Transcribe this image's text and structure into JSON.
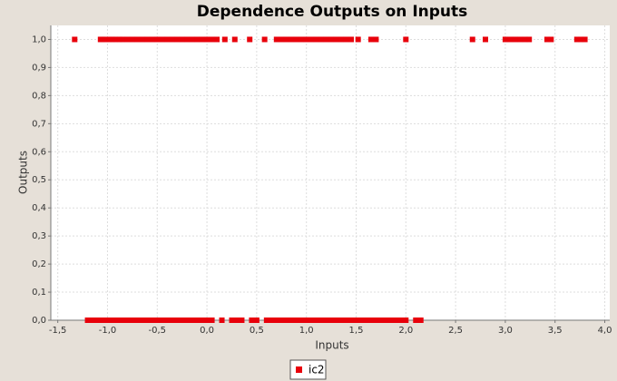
{
  "chart_data": {
    "type": "scatter",
    "title": "Dependence Outputs on Inputs",
    "x_label": "Inputs",
    "y_label": "Outputs",
    "xlim": [
      -1.57,
      4.05
    ],
    "ylim": [
      0,
      1.05
    ],
    "xticks": [
      {
        "value": -1.5,
        "label": "-1,5"
      },
      {
        "value": -1.0,
        "label": "-1,0"
      },
      {
        "value": -0.5,
        "label": "-0,5"
      },
      {
        "value": 0,
        "label": "0,0"
      },
      {
        "value": 0.5,
        "label": "0,5"
      },
      {
        "value": 1.0,
        "label": "1,0"
      },
      {
        "value": 1.5,
        "label": "1,5"
      },
      {
        "value": 2.0,
        "label": "2,0"
      },
      {
        "value": 2.5,
        "label": "2,5"
      },
      {
        "value": 3.0,
        "label": "3,0"
      },
      {
        "value": 3.5,
        "label": "3,5"
      },
      {
        "value": 4.0,
        "label": "4,0"
      }
    ],
    "yticks": [
      {
        "value": 0,
        "label": "0,0"
      },
      {
        "value": 0.1,
        "label": "0,1"
      },
      {
        "value": 0.2,
        "label": "0,2"
      },
      {
        "value": 0.3,
        "label": "0,3"
      },
      {
        "value": 0.4,
        "label": "0,4"
      },
      {
        "value": 0.5,
        "label": "0,5"
      },
      {
        "value": 0.6,
        "label": "0,6"
      },
      {
        "value": 0.7,
        "label": "0,7"
      },
      {
        "value": 0.8,
        "label": "0,8"
      },
      {
        "value": 0.9,
        "label": "0,9"
      },
      {
        "value": 1.0,
        "label": "1,0"
      }
    ],
    "grid": true,
    "legend": "bottom",
    "series": [
      {
        "name": "ic2",
        "color": "#e8000b",
        "x": [
          -1.33,
          -1.07,
          -1.05,
          -1.02,
          -0.98,
          -0.95,
          -0.92,
          -0.88,
          -0.85,
          -0.8,
          -0.75,
          -0.7,
          -0.65,
          -0.6,
          -0.55,
          -0.5,
          -0.45,
          -0.4,
          -0.35,
          -0.3,
          -0.25,
          -0.2,
          -0.15,
          -0.1,
          -0.05,
          0.0,
          0.05,
          0.1,
          0.18,
          0.28,
          0.43,
          0.58,
          0.7,
          0.75,
          0.8,
          0.85,
          0.9,
          0.95,
          1.0,
          1.05,
          1.1,
          1.15,
          1.2,
          1.25,
          1.3,
          1.35,
          1.4,
          1.45,
          1.52,
          1.65,
          1.7,
          2.0,
          2.67,
          2.8,
          3.0,
          3.05,
          3.1,
          3.15,
          3.2,
          3.24,
          3.42,
          3.46,
          3.72,
          3.76,
          3.8,
          -1.2,
          -1.15,
          -1.1,
          -1.05,
          -1.0,
          -0.95,
          -0.9,
          -0.85,
          -0.8,
          -0.75,
          -0.7,
          -0.65,
          -0.6,
          -0.55,
          -0.5,
          -0.45,
          -0.4,
          -0.35,
          -0.3,
          -0.25,
          -0.2,
          -0.15,
          -0.1,
          -0.05,
          0.0,
          0.05,
          0.15,
          0.25,
          0.3,
          0.35,
          0.45,
          0.5,
          0.6,
          0.65,
          0.7,
          0.75,
          0.8,
          0.85,
          0.9,
          0.95,
          1.0,
          1.05,
          1.1,
          1.15,
          1.2,
          1.25,
          1.3,
          1.35,
          1.4,
          1.45,
          1.5,
          1.55,
          1.6,
          1.65,
          1.7,
          1.75,
          1.8,
          1.85,
          1.9,
          1.95,
          2.0,
          2.1,
          2.15
        ],
        "values": [
          1,
          1,
          1,
          1,
          1,
          1,
          1,
          1,
          1,
          1,
          1,
          1,
          1,
          1,
          1,
          1,
          1,
          1,
          1,
          1,
          1,
          1,
          1,
          1,
          1,
          1,
          1,
          1,
          1,
          1,
          1,
          1,
          1,
          1,
          1,
          1,
          1,
          1,
          1,
          1,
          1,
          1,
          1,
          1,
          1,
          1,
          1,
          1,
          1,
          1,
          1,
          1,
          1,
          1,
          1,
          1,
          1,
          1,
          1,
          1,
          1,
          1,
          1,
          1,
          1,
          0,
          0,
          0,
          0,
          0,
          0,
          0,
          0,
          0,
          0,
          0,
          0,
          0,
          0,
          0,
          0,
          0,
          0,
          0,
          0,
          0,
          0,
          0,
          0,
          0,
          0,
          0,
          0,
          0,
          0,
          0,
          0,
          0,
          0,
          0,
          0,
          0,
          0,
          0,
          0,
          0,
          0,
          0,
          0,
          0,
          0,
          0,
          0,
          0,
          0,
          0,
          0,
          0,
          0,
          0,
          0,
          0,
          0,
          0,
          0,
          0,
          0,
          0
        ]
      }
    ]
  }
}
